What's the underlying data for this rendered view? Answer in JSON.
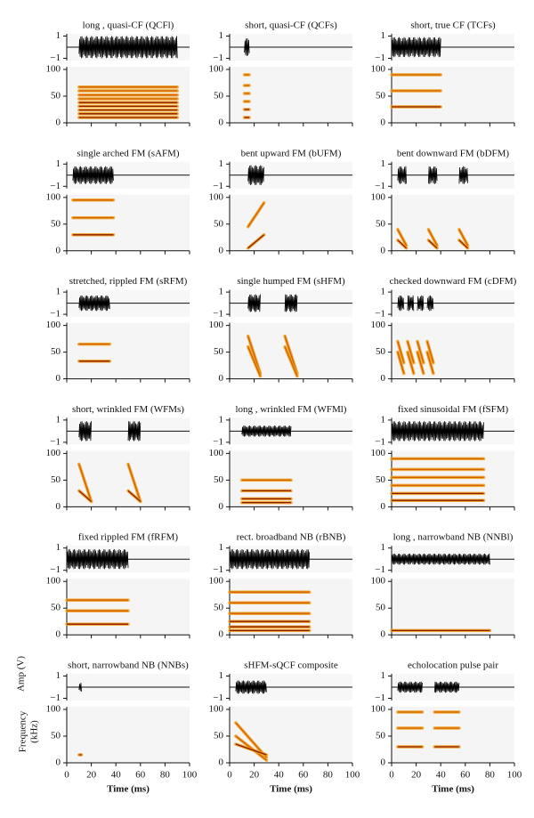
{
  "chart_data": {
    "type": "waveform-spectrogram",
    "xlabel": "Time (ms)",
    "amp_label": "Amp (V)",
    "freq_label": [
      "Frequency",
      "(kHz)"
    ],
    "xlim": [
      0,
      100
    ],
    "xticks": [
      0,
      20,
      40,
      60,
      80,
      100
    ],
    "amp_lim": [
      -1.2,
      1.2
    ],
    "amp_ticks": [
      1,
      {
        "value": -1,
        "label": "−1"
      }
    ],
    "freq_lim": [
      0,
      105
    ],
    "freq_ticks": [
      0,
      50,
      100
    ],
    "panels": [
      {
        "title": "long , quasi-CF (QCFl)",
        "pulses": [
          [
            10,
            90,
            1
          ]
        ],
        "harmonics": [
          [
            10,
            10
          ],
          [
            17,
            17
          ],
          [
            24,
            24
          ],
          [
            31,
            31
          ],
          [
            38,
            38
          ],
          [
            45,
            45
          ],
          [
            52,
            52
          ],
          [
            60,
            60
          ],
          [
            67,
            67
          ]
        ]
      },
      {
        "title": "short, quasi-CF (QCFs)",
        "pulses": [
          [
            12,
            16,
            0.8
          ]
        ],
        "harmonics": [
          [
            10,
            10
          ],
          [
            25,
            25
          ],
          [
            40,
            40
          ],
          [
            55,
            55
          ],
          [
            70,
            70
          ],
          [
            90,
            90
          ]
        ]
      },
      {
        "title": "short, true CF (TCFs)",
        "pulses": [
          [
            0,
            40,
            0.9
          ]
        ],
        "harmonics": [
          [
            90,
            90
          ],
          [
            60,
            60
          ],
          [
            30,
            30
          ]
        ]
      },
      {
        "title": "single arched FM (sAFM)",
        "pulses": [
          [
            5,
            38,
            0.8
          ]
        ],
        "harmonics": [
          [
            95,
            95
          ],
          [
            62,
            62
          ],
          [
            30,
            30
          ]
        ]
      },
      {
        "title": "bent upward FM (bUFM)",
        "pulses": [
          [
            15,
            28,
            0.9
          ]
        ],
        "harmonics": [
          [
            5,
            30
          ],
          [
            45,
            90
          ]
        ]
      },
      {
        "title": "bent downward FM (bDFM)",
        "pulses": [
          [
            5,
            12,
            0.8
          ],
          [
            30,
            37,
            0.8
          ],
          [
            55,
            62,
            0.8
          ]
        ],
        "harmonics": [
          [
            40,
            10
          ],
          [
            20,
            5
          ]
        ]
      },
      {
        "title": "stretched, rippled FM (sRFM)",
        "pulses": [
          [
            10,
            35,
            0.7
          ]
        ],
        "harmonics": [
          [
            65,
            65
          ],
          [
            33,
            33
          ]
        ]
      },
      {
        "title": "single humped FM (sHFM)",
        "pulses": [
          [
            15,
            25,
            0.8
          ],
          [
            45,
            55,
            0.8
          ]
        ],
        "harmonics": [
          [
            80,
            10
          ],
          [
            60,
            5
          ]
        ]
      },
      {
        "title": "checked downward FM (cDFM)",
        "pulses": [
          [
            5,
            10,
            0.7
          ],
          [
            13,
            18,
            0.7
          ],
          [
            21,
            26,
            0.7
          ],
          [
            29,
            34,
            0.7
          ]
        ],
        "harmonics": [
          [
            70,
            30
          ],
          [
            50,
            10
          ]
        ]
      },
      {
        "title": "short, wrinkled FM (WFMs)",
        "pulses": [
          [
            10,
            20,
            0.9
          ],
          [
            50,
            60,
            0.9
          ]
        ],
        "harmonics": [
          [
            80,
            10
          ],
          [
            30,
            10
          ]
        ]
      },
      {
        "title": "long , wrinkled FM (WFMl)",
        "pulses": [
          [
            10,
            50,
            0.5
          ]
        ],
        "harmonics": [
          [
            50,
            50
          ],
          [
            30,
            30
          ],
          [
            15,
            15
          ],
          [
            8,
            8
          ]
        ]
      },
      {
        "title": "fixed sinusoidal FM (fSFM)",
        "pulses": [
          [
            0,
            75,
            0.9
          ]
        ],
        "harmonics": [
          [
            90,
            90
          ],
          [
            70,
            70
          ],
          [
            55,
            55
          ],
          [
            40,
            40
          ],
          [
            25,
            25
          ],
          [
            12,
            12
          ]
        ]
      },
      {
        "title": "fixed rippled FM (fRFM)",
        "pulses": [
          [
            0,
            50,
            0.9
          ]
        ],
        "harmonics": [
          [
            65,
            65
          ],
          [
            45,
            45
          ],
          [
            20,
            20
          ]
        ]
      },
      {
        "title": "rect. broadband NB (rBNB)",
        "pulses": [
          [
            0,
            65,
            0.9
          ]
        ],
        "harmonics": [
          [
            80,
            80
          ],
          [
            60,
            60
          ],
          [
            40,
            40
          ],
          [
            25,
            25
          ],
          [
            15,
            15
          ],
          [
            8,
            8
          ]
        ]
      },
      {
        "title": "long , narrowband NB (NNBl)",
        "pulses": [
          [
            0,
            80,
            0.5
          ]
        ],
        "harmonics": [
          [
            8,
            8
          ]
        ]
      },
      {
        "title": "short, narrowband NB (NNBs)",
        "pulses": [
          [
            10,
            12,
            0.4
          ]
        ],
        "harmonics": [
          [
            15,
            15
          ]
        ]
      },
      {
        "title": "sHFM-sQCF composite",
        "pulses": [
          [
            5,
            30,
            0.6
          ]
        ],
        "harmonics": [
          [
            75,
            10
          ],
          [
            50,
            5
          ],
          [
            35,
            15
          ]
        ]
      },
      {
        "title": "echolocation pulse pair",
        "pulses": [
          [
            5,
            25,
            0.5
          ],
          [
            35,
            55,
            0.5
          ]
        ],
        "harmonics": [
          [
            95,
            95
          ],
          [
            65,
            65
          ],
          [
            30,
            30
          ]
        ]
      }
    ]
  }
}
